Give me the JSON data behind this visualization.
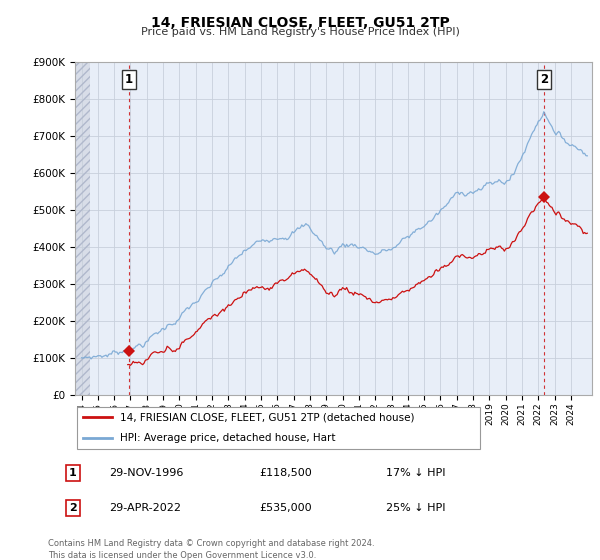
{
  "title": "14, FRIESIAN CLOSE, FLEET, GU51 2TP",
  "subtitle": "Price paid vs. HM Land Registry's House Price Index (HPI)",
  "hpi_color": "#7aa8d4",
  "price_color": "#cc1111",
  "point1_x": 1996.92,
  "point1_y": 118500,
  "point2_x": 2022.33,
  "point2_y": 535000,
  "ylim": [
    0,
    900000
  ],
  "xlim_start": 1993.6,
  "xlim_end": 2025.3,
  "yticks": [
    0,
    100000,
    200000,
    300000,
    400000,
    500000,
    600000,
    700000,
    800000,
    900000
  ],
  "ytick_labels": [
    "£0",
    "£100K",
    "£200K",
    "£300K",
    "£400K",
    "£500K",
    "£600K",
    "£700K",
    "£800K",
    "£900K"
  ],
  "xtick_years": [
    1994,
    1995,
    1996,
    1997,
    1998,
    1999,
    2000,
    2001,
    2002,
    2003,
    2004,
    2005,
    2006,
    2007,
    2008,
    2009,
    2010,
    2011,
    2012,
    2013,
    2014,
    2015,
    2016,
    2017,
    2018,
    2019,
    2020,
    2021,
    2022,
    2023,
    2024
  ],
  "legend_label1": "14, FRIESIAN CLOSE, FLEET, GU51 2TP (detached house)",
  "legend_label2": "HPI: Average price, detached house, Hart",
  "note1_label": "1",
  "note1_date": "29-NOV-1996",
  "note1_price": "£118,500",
  "note1_hpi": "17% ↓ HPI",
  "note2_label": "2",
  "note2_date": "29-APR-2022",
  "note2_price": "£535,000",
  "note2_hpi": "25% ↓ HPI",
  "footer": "Contains HM Land Registry data © Crown copyright and database right 2024.\nThis data is licensed under the Open Government Licence v3.0.",
  "bg_color": "#ffffff",
  "plot_bg_color": "#e8eef8",
  "grid_color": "#c8d0dc",
  "hatch_bg": "#d8dde8"
}
